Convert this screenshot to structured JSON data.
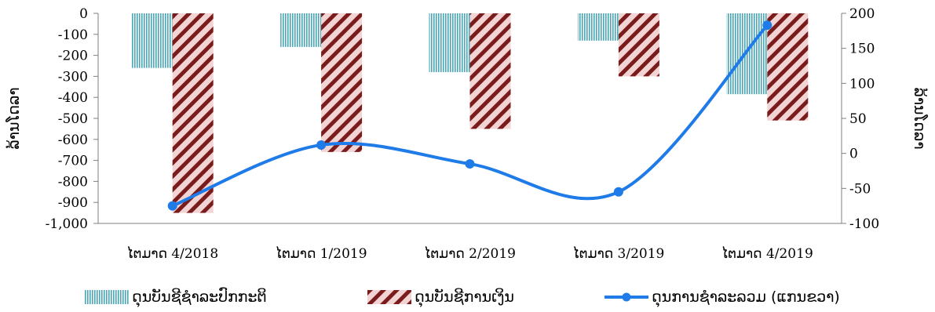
{
  "chart_data": {
    "type": "bar",
    "categories": [
      "ໄຕມາດ 4/2018",
      "ໄຕມາດ 1/2019",
      "ໄຕມາດ 2/2019",
      "ໄຕມາດ 3/2019",
      "ໄຕມາດ 4/2019"
    ],
    "series": [
      {
        "name": "ດຸນບັນຊີຊໍາລະປົກກະຕິ",
        "kind": "bar",
        "axis": "left",
        "pattern": "vertical-stripes",
        "color": "#4aa7b8",
        "values": [
          -260,
          -160,
          -280,
          -130,
          -385
        ]
      },
      {
        "name": "ດຸນບັນຊີການເງິນ",
        "kind": "bar",
        "axis": "left",
        "pattern": "diagonal-stripes",
        "color": "#7b1c1c",
        "values": [
          -950,
          -660,
          -550,
          -300,
          -510
        ]
      },
      {
        "name": "ດຸນການຊໍາລະລວມ (ແກນຂວາ)",
        "kind": "line",
        "axis": "right",
        "color": "#1e7be8",
        "values": [
          -75,
          12,
          -15,
          -55,
          183
        ]
      }
    ],
    "left_axis": {
      "label": "ລ້ານໂດລາ",
      "min": -1000,
      "max": 0,
      "step": 100,
      "ticks": [
        "0",
        "-100",
        "-200",
        "-300",
        "-400",
        "-500",
        "-600",
        "-700",
        "-800",
        "-900",
        "-1,000"
      ]
    },
    "right_axis": {
      "label": "ລ້ານໂດລາ",
      "min": -100,
      "max": 200,
      "step": 50,
      "ticks": [
        "200",
        "150",
        "100",
        "50",
        "0",
        "-50",
        "-100"
      ]
    },
    "grid": false,
    "legend_position": "bottom"
  },
  "legend": {
    "item1": "ດຸນບັນຊີຊໍາລະປົກກະຕິ",
    "item2": "ດຸນບັນຊີການເງິນ",
    "item3": "ດຸນການຊໍາລະລວມ (ແກນຂວາ)"
  }
}
